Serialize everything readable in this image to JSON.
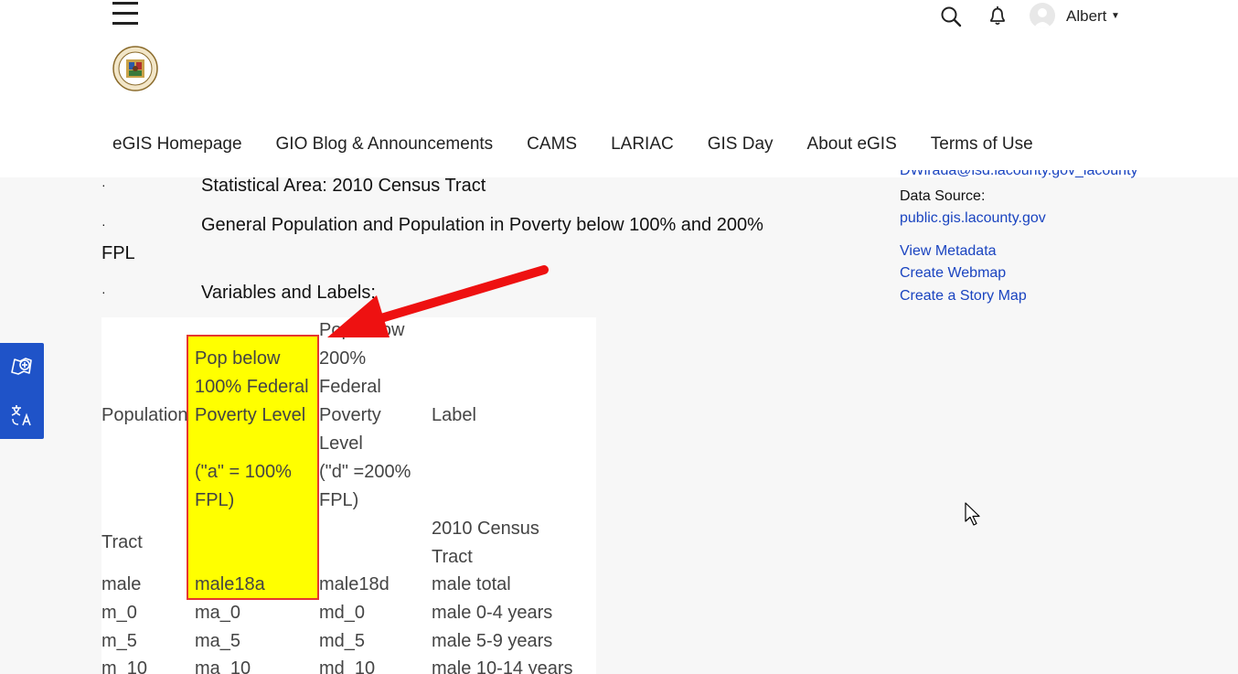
{
  "header": {
    "user_name": "Albert",
    "icons": [
      "hamburger-menu-icon",
      "county-seal-logo",
      "search-icon",
      "bell-icon",
      "avatar-icon",
      "caret-down-icon"
    ],
    "nav": [
      "eGIS Homepage",
      "GIO Blog & Announcements",
      "CAMS",
      "LARIAC",
      "GIS Day",
      "About eGIS",
      "Terms of Use"
    ]
  },
  "content": {
    "bullet": "·",
    "items": [
      "Statistical Area: 2010 Census Tract",
      "General Population and Population in Poverty below 100% and 200%",
      "Variables and Labels:"
    ],
    "item2_wrap": "FPL"
  },
  "table": {
    "headers": {
      "population": "Population",
      "pov100": [
        "Pop below",
        "100% Federal",
        "Poverty Level",
        "",
        "(\"a\" = 100%",
        "FPL)"
      ],
      "pov200": [
        "Pop below",
        "200%",
        "Federal",
        "Poverty",
        "Level",
        "(\"d\" =200%",
        "FPL)"
      ],
      "label": "Label"
    },
    "tract_row": {
      "col1": "Tract",
      "col4": [
        "2010 Census",
        "Tract"
      ]
    },
    "rows": [
      [
        "male",
        "male18a",
        "male18d",
        "male total"
      ],
      [
        "m_0",
        "ma_0",
        "md_0",
        "male 0-4 years"
      ],
      [
        "m_5",
        "ma_5",
        "md_5",
        "male 5-9 years"
      ],
      [
        "m_10",
        "ma_10",
        "md_10",
        "male 10-14 years"
      ]
    ]
  },
  "right": {
    "cut_line": "DWirada@isd.lacounty.gov_lacounty",
    "data_source_label": "Data Source:",
    "data_source_link": "public.gis.lacounty.gov",
    "links": [
      "View Metadata",
      "Create Webmap",
      "Create a Story Map"
    ]
  },
  "sidebar": {
    "icons": [
      "add-map-icon",
      "translate-icon"
    ]
  },
  "colors": {
    "highlight": "#ffff00",
    "highlight_border": "#e5372f",
    "arrow": "#ee1111",
    "link": "#1a44c0",
    "sidebar": "#1f53c8"
  }
}
